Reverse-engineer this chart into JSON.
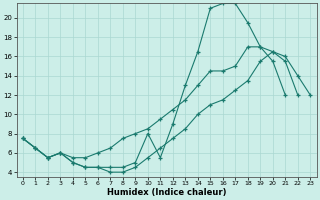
{
  "xlabel": "Humidex (Indice chaleur)",
  "bg_color": "#cceee8",
  "grid_color": "#aad8d2",
  "line_color": "#1a7a6e",
  "xlim": [
    -0.5,
    23.5
  ],
  "ylim": [
    3.5,
    21.5
  ],
  "yticks": [
    4,
    6,
    8,
    10,
    12,
    14,
    16,
    18,
    20
  ],
  "xticks": [
    0,
    1,
    2,
    3,
    4,
    5,
    6,
    7,
    8,
    9,
    10,
    11,
    12,
    13,
    14,
    15,
    16,
    17,
    18,
    19,
    20,
    21,
    22,
    23
  ],
  "s1_x": [
    0,
    1,
    2,
    3,
    4,
    5,
    6,
    7,
    8,
    9,
    10,
    11,
    12,
    13,
    14,
    15,
    16,
    17,
    18,
    19,
    20,
    21
  ],
  "s1_y": [
    7.5,
    6.5,
    5.5,
    6.0,
    5.0,
    4.5,
    4.5,
    4.5,
    4.5,
    5.0,
    8.0,
    5.5,
    9.0,
    13.0,
    16.5,
    21.0,
    21.5,
    21.5,
    19.5,
    17.0,
    15.5,
    12.0
  ],
  "s2_x": [
    0,
    1,
    2,
    3,
    4,
    5,
    6,
    7,
    8,
    9,
    10,
    11,
    12,
    13,
    14,
    15,
    16,
    17,
    18,
    19,
    20,
    21,
    22
  ],
  "s2_y": [
    7.5,
    6.5,
    5.5,
    6.0,
    5.5,
    5.5,
    6.0,
    6.5,
    7.5,
    8.0,
    8.5,
    9.5,
    10.5,
    11.5,
    13.0,
    14.5,
    14.5,
    15.0,
    17.0,
    17.0,
    16.5,
    15.5,
    12.0
  ],
  "s3_x": [
    0,
    1,
    2,
    3,
    4,
    5,
    6,
    7,
    8,
    9,
    10,
    11,
    12,
    13,
    14,
    15,
    16,
    17,
    18,
    19,
    20,
    21,
    22,
    23
  ],
  "s3_y": [
    7.5,
    6.5,
    5.5,
    6.0,
    5.0,
    4.5,
    4.5,
    4.0,
    4.0,
    4.5,
    5.5,
    6.5,
    7.5,
    8.5,
    10.0,
    11.0,
    11.5,
    12.5,
    13.5,
    15.5,
    16.5,
    16.0,
    14.0,
    12.0
  ]
}
